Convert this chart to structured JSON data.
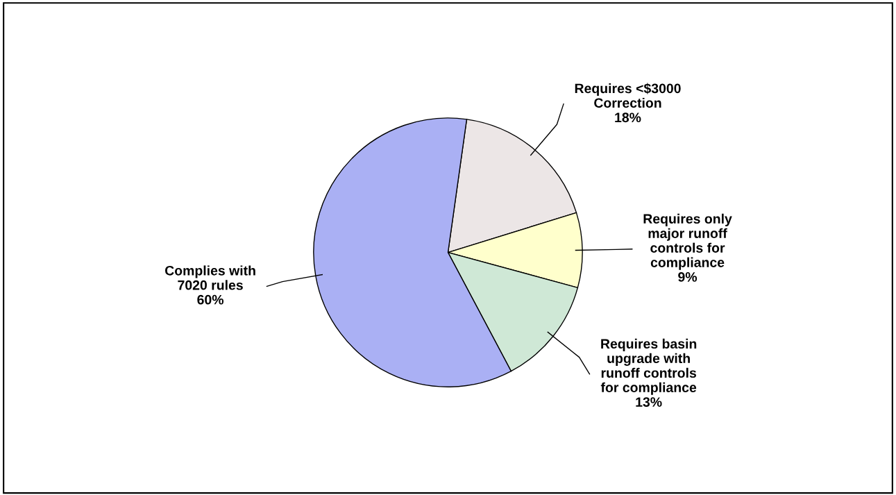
{
  "chart_data": {
    "type": "pie",
    "categories": [
      "Requires <$3000\nCorrection",
      "Requires only\nmajor runoff\ncontrols for\ncompliance",
      "Requires basin\nupgrade with\nrunoff controls\nfor compliance",
      "Complies with\n7020 rules"
    ],
    "values": [
      18,
      9,
      13,
      60
    ],
    "colors": [
      "#ece6e6",
      "#ffffcc",
      "#cfe8d6",
      "#aab0f4"
    ],
    "value_labels": [
      "18%",
      "9%",
      "13%",
      "60%"
    ]
  }
}
